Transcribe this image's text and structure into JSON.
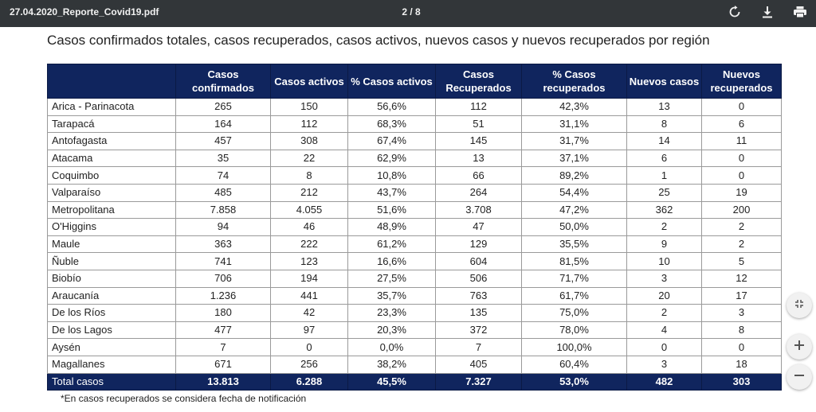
{
  "toolbar": {
    "file_name": "27.04.2020_Reporte_Covid19.pdf",
    "page_indicator": "2 / 8",
    "icons": [
      "rotate-icon",
      "download-icon",
      "print-icon"
    ]
  },
  "document": {
    "title": "Casos confirmados totales, casos recuperados, casos activos, nuevos casos y nuevos recuperados por región",
    "footnote": "*En casos recuperados se considera fecha de notificación",
    "header_color": "#10255e",
    "table": {
      "headers": [
        "",
        "Casos confirmados",
        "Casos activos",
        "% Casos activos",
        "Casos Recuperados",
        "% Casos recuperados",
        "Nuevos casos",
        "Nuevos recuperados"
      ],
      "rows": [
        [
          "Arica - Parinacota",
          "265",
          "150",
          "56,6%",
          "112",
          "42,3%",
          "13",
          "0"
        ],
        [
          "Tarapacá",
          "164",
          "112",
          "68,3%",
          "51",
          "31,1%",
          "8",
          "6"
        ],
        [
          "Antofagasta",
          "457",
          "308",
          "67,4%",
          "145",
          "31,7%",
          "14",
          "11"
        ],
        [
          "Atacama",
          "35",
          "22",
          "62,9%",
          "13",
          "37,1%",
          "6",
          "0"
        ],
        [
          "Coquimbo",
          "74",
          "8",
          "10,8%",
          "66",
          "89,2%",
          "1",
          "0"
        ],
        [
          "Valparaíso",
          "485",
          "212",
          "43,7%",
          "264",
          "54,4%",
          "25",
          "19"
        ],
        [
          "Metropolitana",
          "7.858",
          "4.055",
          "51,6%",
          "3.708",
          "47,2%",
          "362",
          "200"
        ],
        [
          "O'Higgins",
          "94",
          "46",
          "48,9%",
          "47",
          "50,0%",
          "2",
          "2"
        ],
        [
          "Maule",
          "363",
          "222",
          "61,2%",
          "129",
          "35,5%",
          "9",
          "2"
        ],
        [
          "Ñuble",
          "741",
          "123",
          "16,6%",
          "604",
          "81,5%",
          "10",
          "5"
        ],
        [
          "Biobío",
          "706",
          "194",
          "27,5%",
          "506",
          "71,7%",
          "3",
          "12"
        ],
        [
          "Araucanía",
          "1.236",
          "441",
          "35,7%",
          "763",
          "61,7%",
          "20",
          "17"
        ],
        [
          "De los Ríos",
          "180",
          "42",
          "23,3%",
          "135",
          "75,0%",
          "2",
          "3"
        ],
        [
          "De los Lagos",
          "477",
          "97",
          "20,3%",
          "372",
          "78,0%",
          "4",
          "8"
        ],
        [
          "Aysén",
          "7",
          "0",
          "0,0%",
          "7",
          "100,0%",
          "0",
          "0"
        ],
        [
          "Magallanes",
          "671",
          "256",
          "38,2%",
          "405",
          "60,4%",
          "3",
          "18"
        ]
      ],
      "total": [
        "Total casos",
        "13.813",
        "6.288",
        "45,5%",
        "7.327",
        "53,0%",
        "482",
        "303"
      ]
    }
  },
  "zoom_controls": {
    "icons": [
      "fit-page-icon",
      "zoom-in-icon",
      "zoom-out-icon"
    ]
  }
}
